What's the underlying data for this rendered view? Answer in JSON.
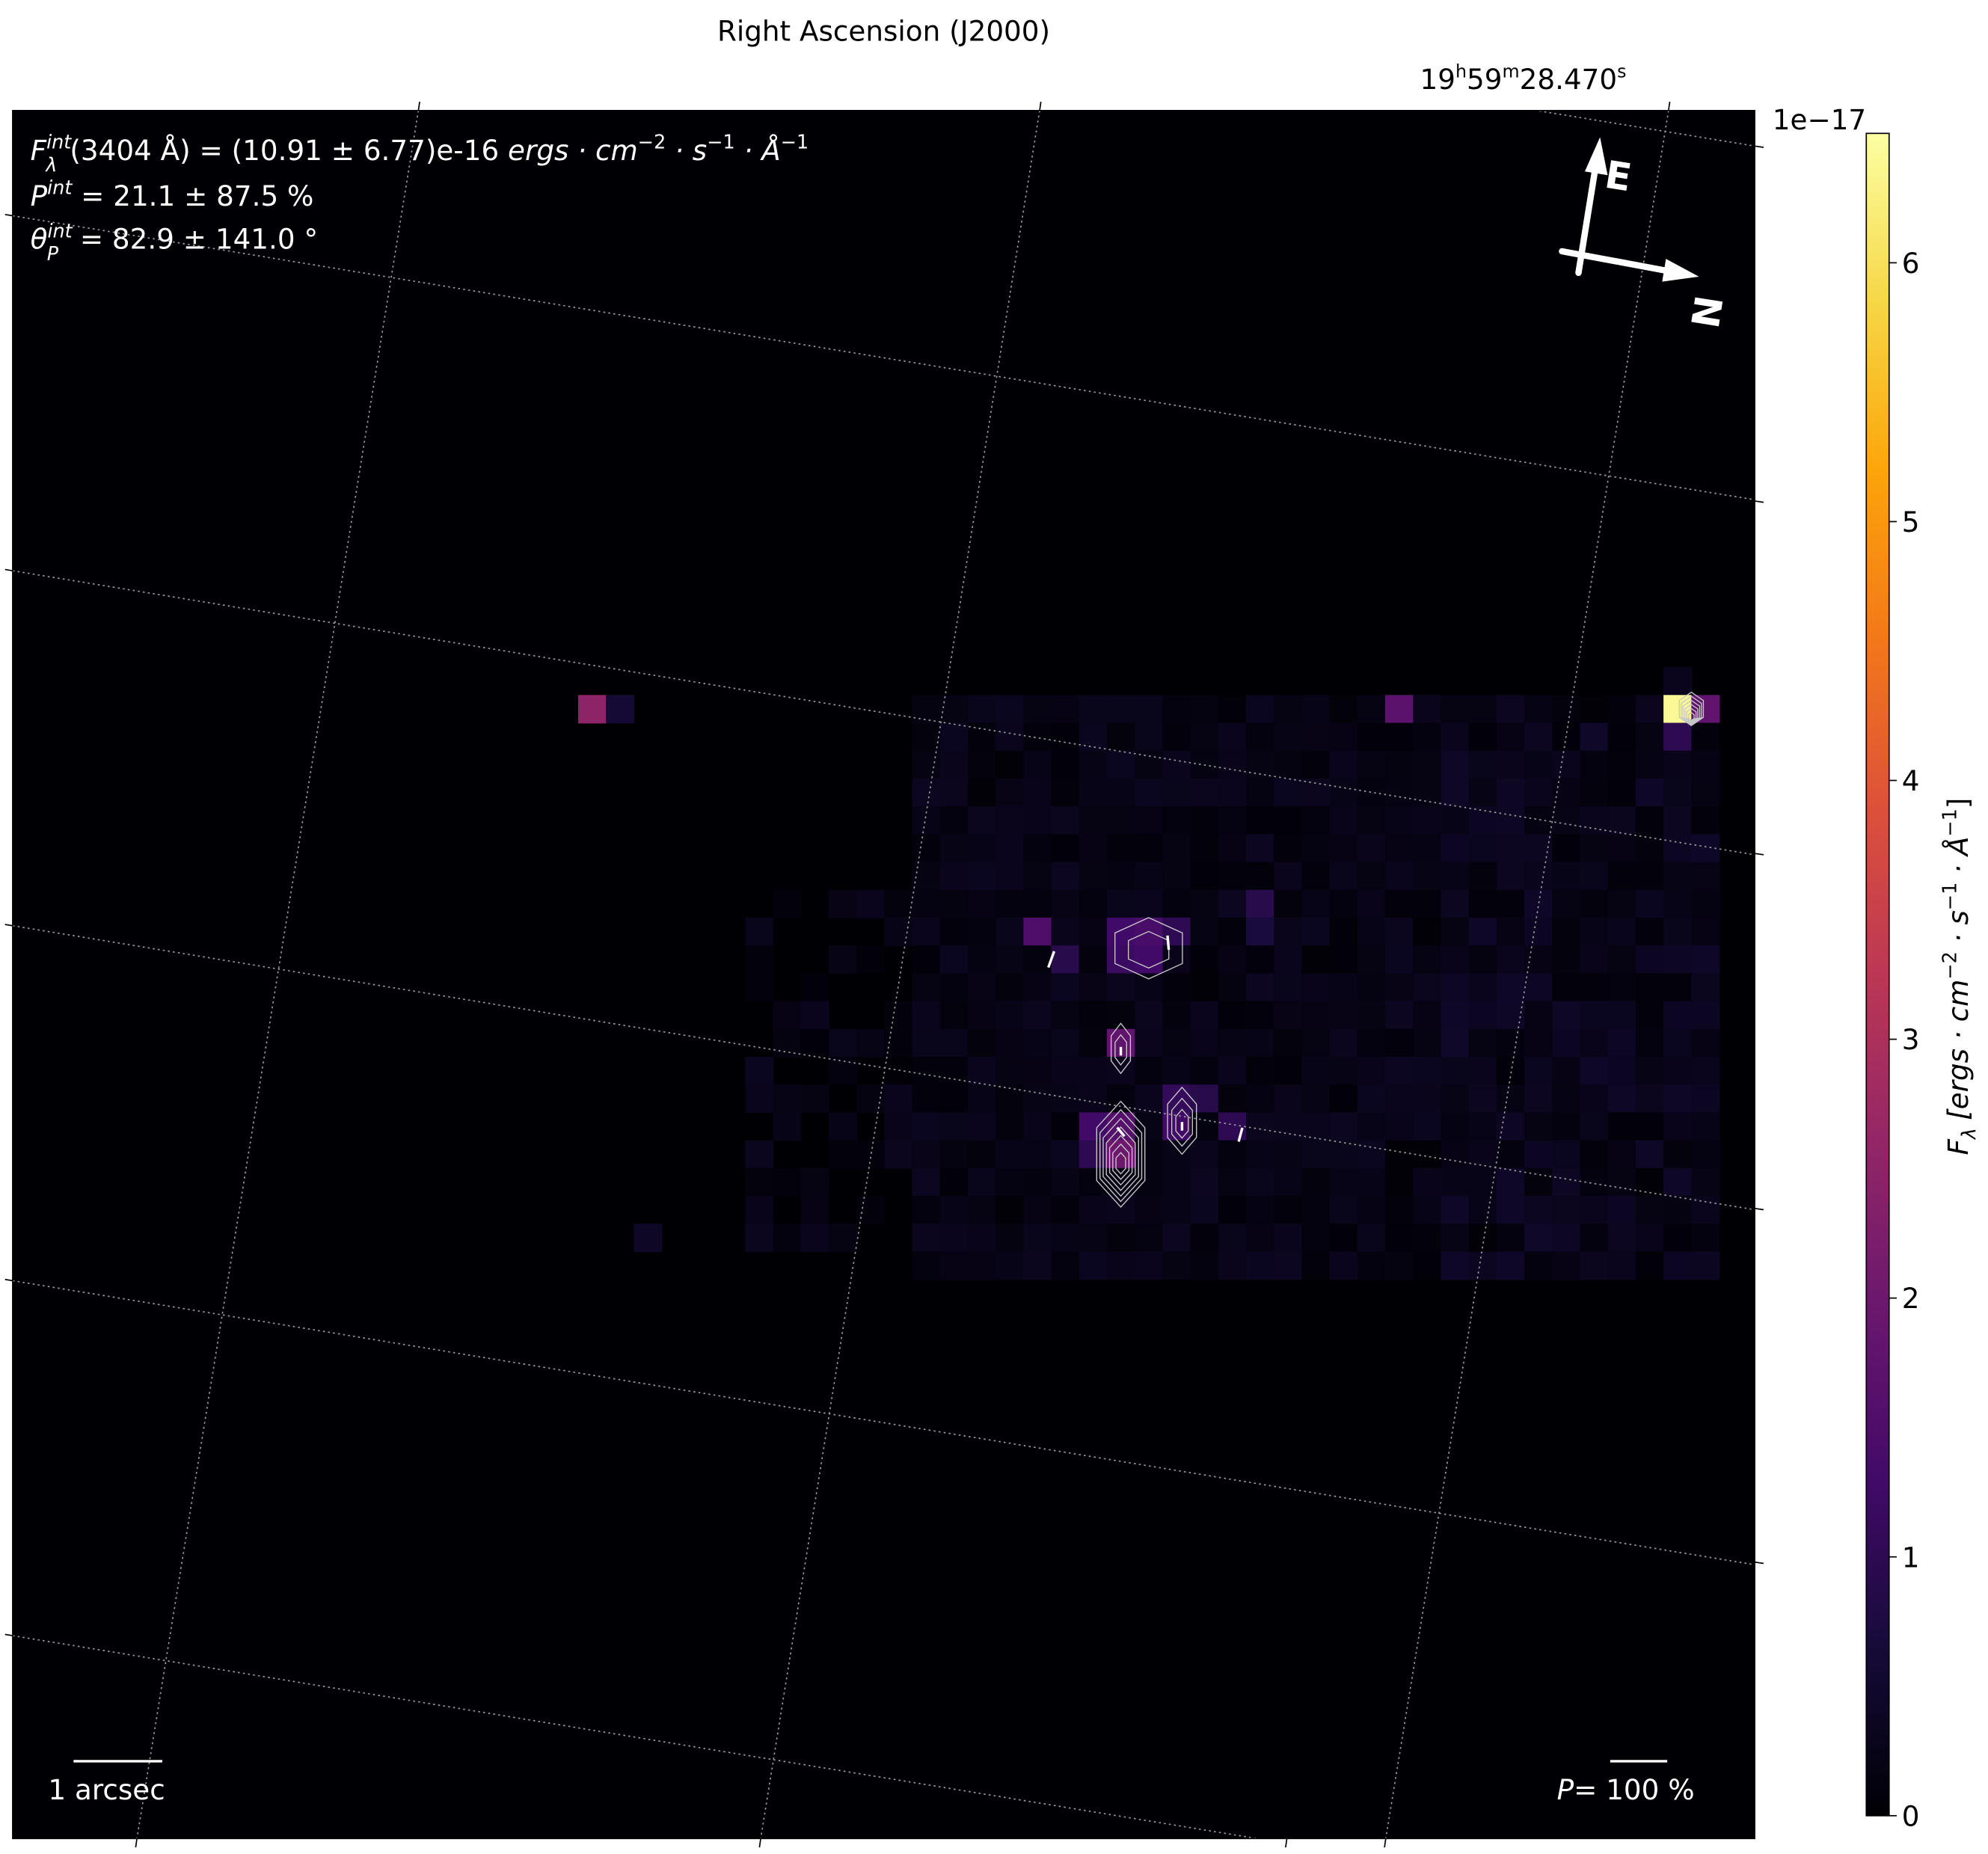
{
  "chart_data": {
    "type": "heatmap",
    "colormap": "inferno",
    "axes": {
      "top_label": "Right Ascension (J2000)",
      "top_tick": {
        "h": "19",
        "h_unit": "h",
        "m": "59",
        "m_unit": "m",
        "s": "28.470",
        "s_unit": "s"
      },
      "grid": true,
      "grid_style": "dotted"
    },
    "colorbar": {
      "label_main": "F",
      "label_sub": "λ",
      "label_units": "[ergs · cm",
      "label_e1": "−2",
      "label_s": " · s",
      "label_e2": "−1",
      "label_a": " · Å",
      "label_e3": "−1",
      "label_end": "]",
      "offset_text": "1e−17",
      "range": [
        0,
        6.5
      ],
      "ticks": [
        "0",
        "1",
        "2",
        "3",
        "4",
        "5",
        "6"
      ]
    },
    "annotations": {
      "flux_sym": "F",
      "flux_sup": "int",
      "flux_sub": "λ",
      "flux_text": "(3404 Å) = (10.91 ± 6.77)e-16 ",
      "flux_units": "ergs · cm",
      "flux_e1": "−2",
      "flux_s": " · s",
      "flux_e2": "−1",
      "flux_a": " · Å",
      "flux_e3": "−1",
      "pol_sym": "P",
      "pol_sup": "int",
      "pol_text": " = 21.1 ± 87.5 %",
      "ang_sym": "θ",
      "ang_sub": "P",
      "ang_sup": "int",
      "ang_text": " = 82.9 ± 141.0 °",
      "scale_bar_label": "1 arcsec",
      "pol_bar_sym": "P",
      "pol_bar_label": "= 100 %",
      "compass_east": "E",
      "compass_north": "N"
    },
    "image": {
      "units": "1e-17 ergs cm^-2 s^-1 Å^-1",
      "background_range": [
        0.05,
        0.45
      ],
      "bright_pixels": [
        {
          "col": 0,
          "row": 0,
          "value": 2.5
        },
        {
          "col": 1,
          "row": 0,
          "value": 0.6
        },
        {
          "col": 29,
          "row": 0,
          "value": 1.7
        },
        {
          "col": 39,
          "row": 0,
          "value": 6.4
        },
        {
          "col": 40,
          "row": 0,
          "value": 1.8
        },
        {
          "col": 39,
          "row": 1,
          "value": 1.0
        },
        {
          "col": 39,
          "row": -1,
          "value": 0.3
        },
        {
          "col": 16,
          "row": 8,
          "value": 1.5
        },
        {
          "col": 19,
          "row": 8,
          "value": 1.3
        },
        {
          "col": 20,
          "row": 8,
          "value": 1.4
        },
        {
          "col": 21,
          "row": 8,
          "value": 1.0
        },
        {
          "col": 19,
          "row": 9,
          "value": 1.2
        },
        {
          "col": 20,
          "row": 9,
          "value": 1.3
        },
        {
          "col": 17,
          "row": 9,
          "value": 0.9
        },
        {
          "col": 24,
          "row": 7,
          "value": 0.9
        },
        {
          "col": 24,
          "row": 8,
          "value": 0.7
        },
        {
          "col": 19,
          "row": 12,
          "value": 1.8
        },
        {
          "col": 21,
          "row": 14,
          "value": 1.1
        },
        {
          "col": 22,
          "row": 14,
          "value": 0.9
        },
        {
          "col": 23,
          "row": 15,
          "value": 1.0
        },
        {
          "col": 21,
          "row": 15,
          "value": 1.3
        },
        {
          "col": 18,
          "row": 15,
          "value": 1.3
        },
        {
          "col": 19,
          "row": 15,
          "value": 1.6
        },
        {
          "col": 19,
          "row": 16,
          "value": 2.0
        },
        {
          "col": 18,
          "row": 16,
          "value": 1.0
        },
        {
          "col": 2,
          "row": 19,
          "value": 0.4
        }
      ],
      "contour_peaks": [
        {
          "col": 20,
          "row": 8.6,
          "rx": 1.4,
          "ry": 1.1,
          "levels": 2
        },
        {
          "col": 19,
          "row": 12.2,
          "rx": 0.4,
          "ry": 0.9,
          "levels": 2
        },
        {
          "col": 19,
          "row": 16,
          "rx": 1.0,
          "ry": 1.9,
          "levels": 7
        },
        {
          "col": 21.2,
          "row": 14.8,
          "rx": 0.6,
          "ry": 1.2,
          "levels": 3
        },
        {
          "col": 39.5,
          "row": 0,
          "rx": 0.5,
          "ry": 0.6,
          "levels": 6
        }
      ],
      "pol_vectors": [
        {
          "col": 16.5,
          "row": 9,
          "p": 30,
          "angle": 70
        },
        {
          "col": 20.7,
          "row": 8.4,
          "p": 25,
          "angle": 95
        },
        {
          "col": 19,
          "row": 12.3,
          "p": 15,
          "angle": 90
        },
        {
          "col": 19,
          "row": 15.2,
          "p": 20,
          "angle": 130
        },
        {
          "col": 21.2,
          "row": 15,
          "p": 15,
          "angle": 90
        },
        {
          "col": 23.3,
          "row": 15.3,
          "p": 25,
          "angle": 75
        }
      ]
    }
  }
}
